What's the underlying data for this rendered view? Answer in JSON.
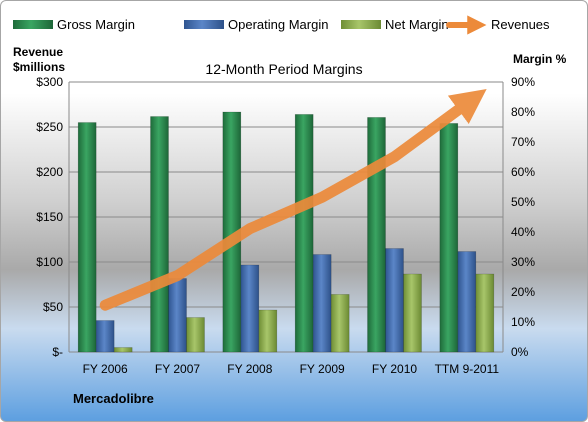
{
  "legend": [
    {
      "name": "Gross Margin",
      "swatch": "gross"
    },
    {
      "name": "Operating Margin",
      "swatch": "op"
    },
    {
      "name": "Net Margin",
      "swatch": "net"
    },
    {
      "name": "Revenues",
      "swatch": "rev"
    }
  ],
  "company": "Mercadolibre",
  "colors": {
    "gross": "#2e8b4f",
    "op": "#4a72b4",
    "net": "#9bbb59",
    "rev": "#ec8a3a"
  },
  "chart_data": {
    "type": "bar",
    "title": "12-Month Period Margins",
    "ylabel_left": [
      "Revenue",
      "$millions"
    ],
    "ylabel_right": "Margin %",
    "categories": [
      "FY 2006",
      "FY 2007",
      "FY 2008",
      "FY 2009",
      "FY 2010",
      "TTM 9-2011"
    ],
    "left_ticks": [
      "$-",
      "$50",
      "$100",
      "$150",
      "$200",
      "$250",
      "$300"
    ],
    "right_ticks": [
      "0%",
      "10%",
      "20%",
      "30%",
      "40%",
      "50%",
      "60%",
      "70%",
      "80%",
      "90%"
    ],
    "ylim_left": [
      0,
      300
    ],
    "ylim_right": [
      0,
      90
    ],
    "series": [
      {
        "name": "Gross Margin",
        "axis": "right",
        "kind": "bar",
        "values": [
          76.5,
          78.5,
          80.0,
          79.2,
          78.2,
          76.2
        ]
      },
      {
        "name": "Operating Margin",
        "axis": "right",
        "kind": "bar",
        "values": [
          10.5,
          24.5,
          29.0,
          32.5,
          34.5,
          33.5
        ]
      },
      {
        "name": "Net Margin",
        "axis": "right",
        "kind": "bar",
        "values": [
          1.5,
          11.5,
          14.0,
          19.2,
          26.0,
          26.0
        ]
      },
      {
        "name": "Revenues",
        "axis": "left",
        "kind": "line",
        "values": [
          52,
          85,
          137,
          172,
          217,
          276
        ]
      }
    ]
  }
}
